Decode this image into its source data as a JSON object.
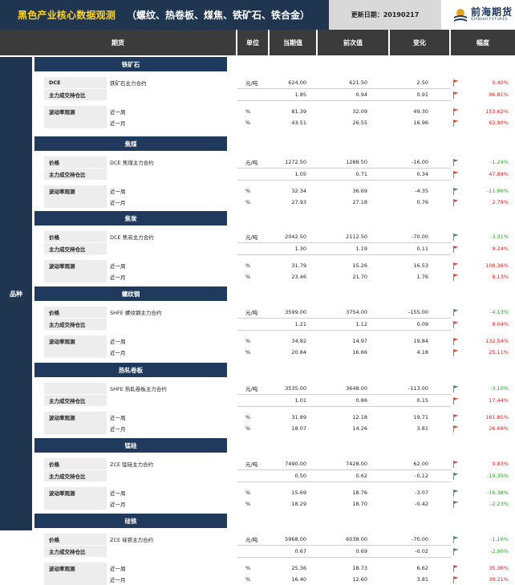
{
  "header": {
    "title_main": "黑色产业核心数据观测",
    "title_sub": "（螺纹、热卷板、煤焦、铁矿石、铁合金）",
    "update": "更新日期：20190217",
    "logo_cn": "前海期货",
    "logo_en": "QIANHAI FUTURES"
  },
  "columns": {
    "futures": "期货",
    "unit": "单位",
    "current": "当期值",
    "previous": "前次值",
    "change": "变化",
    "range": "幅度"
  },
  "variety_label": "品种",
  "colors": {
    "navy": "#1f3550",
    "up_flag": "#d9432b",
    "down_flag": "#3f7f6a",
    "up_text": "#e02020",
    "down_text": "#2aa52a"
  },
  "sections": [
    {
      "name": "铁矿石",
      "rows": [
        {
          "label": "DCE",
          "contract": "铁矿石主力合约",
          "unit": "元/吨",
          "current": "624.00",
          "previous": "621.50",
          "change": "2.50",
          "dir": "up",
          "pct": "0.40%"
        },
        {
          "label": "主力成交持仓比",
          "contract": "",
          "unit": "",
          "current": "1.85",
          "previous": "0.94",
          "change": "0.91",
          "dir": "up",
          "pct": "96.81%"
        },
        {
          "label": "波动率观测",
          "contract": "近一周",
          "unit": "%",
          "current": "81.39",
          "previous": "32.09",
          "change": "49.30",
          "dir": "up",
          "pct": "153.62%"
        },
        {
          "label": "",
          "contract": "近一月",
          "unit": "%",
          "current": "43.51",
          "previous": "26.55",
          "change": "16.96",
          "dir": "up",
          "pct": "63.90%"
        }
      ]
    },
    {
      "name": "焦煤",
      "rows": [
        {
          "label": "价格",
          "contract": "DCE 焦煤主力合约",
          "unit": "元/吨",
          "current": "1272.50",
          "previous": "1288.50",
          "change": "-16.00",
          "dir": "down",
          "pct": "-1.24%"
        },
        {
          "label": "主力成交持仓比",
          "contract": "",
          "unit": "",
          "current": "1.05",
          "previous": "0.71",
          "change": "0.34",
          "dir": "up",
          "pct": "47.89%"
        },
        {
          "label": "波动率观测",
          "contract": "近一周",
          "unit": "%",
          "current": "32.34",
          "previous": "36.69",
          "change": "-4.35",
          "dir": "down",
          "pct": "-11.86%"
        },
        {
          "label": "",
          "contract": "近一月",
          "unit": "%",
          "current": "27.93",
          "previous": "27.18",
          "change": "0.76",
          "dir": "up",
          "pct": "2.79%"
        }
      ]
    },
    {
      "name": "焦炭",
      "rows": [
        {
          "label": "价格",
          "contract": "DCE  焦炭主力合约",
          "unit": "元/吨",
          "current": "2042.50",
          "previous": "2112.50",
          "change": "-70.00",
          "dir": "down",
          "pct": "-3.31%"
        },
        {
          "label": "主力成交持仓比",
          "contract": "",
          "unit": "",
          "current": "1.30",
          "previous": "1.19",
          "change": "0.11",
          "dir": "up",
          "pct": "9.24%"
        },
        {
          "label": "波动率观测",
          "contract": "近一周",
          "unit": "%",
          "current": "31.79",
          "previous": "15.26",
          "change": "16.53",
          "dir": "up",
          "pct": "108.36%"
        },
        {
          "label": "",
          "contract": "近一月",
          "unit": "%",
          "current": "23.46",
          "previous": "21.70",
          "change": "1.76",
          "dir": "up",
          "pct": "8.13%"
        }
      ]
    },
    {
      "name": "螺纹钢",
      "rows": [
        {
          "label": "价格",
          "contract": "SHFE 螺纹钢主力合约",
          "unit": "元/吨",
          "current": "3599.00",
          "previous": "3754.00",
          "change": "-155.00",
          "dir": "down",
          "pct": "-4.13%"
        },
        {
          "label": "主力成交持仓比",
          "contract": "",
          "unit": "",
          "current": "1.21",
          "previous": "1.12",
          "change": "0.09",
          "dir": "up",
          "pct": "8.04%"
        },
        {
          "label": "波动率观测",
          "contract": "近一周",
          "unit": "%",
          "current": "34.82",
          "previous": "14.97",
          "change": "19.84",
          "dir": "up",
          "pct": "132.54%"
        },
        {
          "label": "",
          "contract": "近一月",
          "unit": "%",
          "current": "20.84",
          "previous": "16.66",
          "change": "4.18",
          "dir": "up",
          "pct": "25.11%"
        }
      ]
    },
    {
      "name": "热轧卷板",
      "rows": [
        {
          "label": "",
          "contract": "SHFE 热轧卷板主力合约",
          "unit": "元/吨",
          "current": "3535.00",
          "previous": "3648.00",
          "change": "-113.00",
          "dir": "down",
          "pct": "-3.10%"
        },
        {
          "label": "主力成交持仓比",
          "contract": "",
          "unit": "",
          "current": "1.01",
          "previous": "0.86",
          "change": "0.15",
          "dir": "up",
          "pct": "17.44%"
        },
        {
          "label": "波动率观测",
          "contract": "近一周",
          "unit": "%",
          "current": "31.89",
          "previous": "12.18",
          "change": "19.71",
          "dir": "up",
          "pct": "161.85%"
        },
        {
          "label": "",
          "contract": "近一月",
          "unit": "%",
          "current": "18.07",
          "previous": "14.26",
          "change": "3.81",
          "dir": "up",
          "pct": "26.69%"
        }
      ]
    },
    {
      "name": "锰硅",
      "rows": [
        {
          "label": "价格",
          "contract": "ZCE 锰硅主力合约",
          "unit": "元/吨",
          "current": "7490.00",
          "previous": "7428.00",
          "change": "62.00",
          "dir": "up",
          "pct": "0.83%"
        },
        {
          "label": "主力成交持仓比",
          "contract": "",
          "unit": "",
          "current": "0.50",
          "previous": "0.62",
          "change": "-0.12",
          "dir": "down",
          "pct": "-19.35%"
        },
        {
          "label": "波动率观测",
          "contract": "近一周",
          "unit": "%",
          "current": "15.69",
          "previous": "18.76",
          "change": "-3.07",
          "dir": "down",
          "pct": "-16.38%"
        },
        {
          "label": "",
          "contract": "近一月",
          "unit": "%",
          "current": "18.29",
          "previous": "18.70",
          "change": "-0.42",
          "dir": "down",
          "pct": "-2.23%"
        }
      ]
    },
    {
      "name": "硅铁",
      "rows": [
        {
          "label": "价格",
          "contract": "ZCE 硅铁主力合约",
          "unit": "元/吨",
          "current": "5968.00",
          "previous": "6038.00",
          "change": "-70.00",
          "dir": "down",
          "pct": "-1.16%"
        },
        {
          "label": "主力成交持仓比",
          "contract": "",
          "unit": "",
          "current": "0.67",
          "previous": "0.69",
          "change": "-0.02",
          "dir": "down",
          "pct": "-2.90%"
        },
        {
          "label": "波动率观测",
          "contract": "近一周",
          "unit": "%",
          "current": "25.36",
          "previous": "18.73",
          "change": "6.62",
          "dir": "up",
          "pct": "35.36%"
        },
        {
          "label": "",
          "contract": "近一月",
          "unit": "%",
          "current": "16.40",
          "previous": "12.60",
          "change": "3.81",
          "dir": "up",
          "pct": "30.21%"
        }
      ]
    }
  ]
}
